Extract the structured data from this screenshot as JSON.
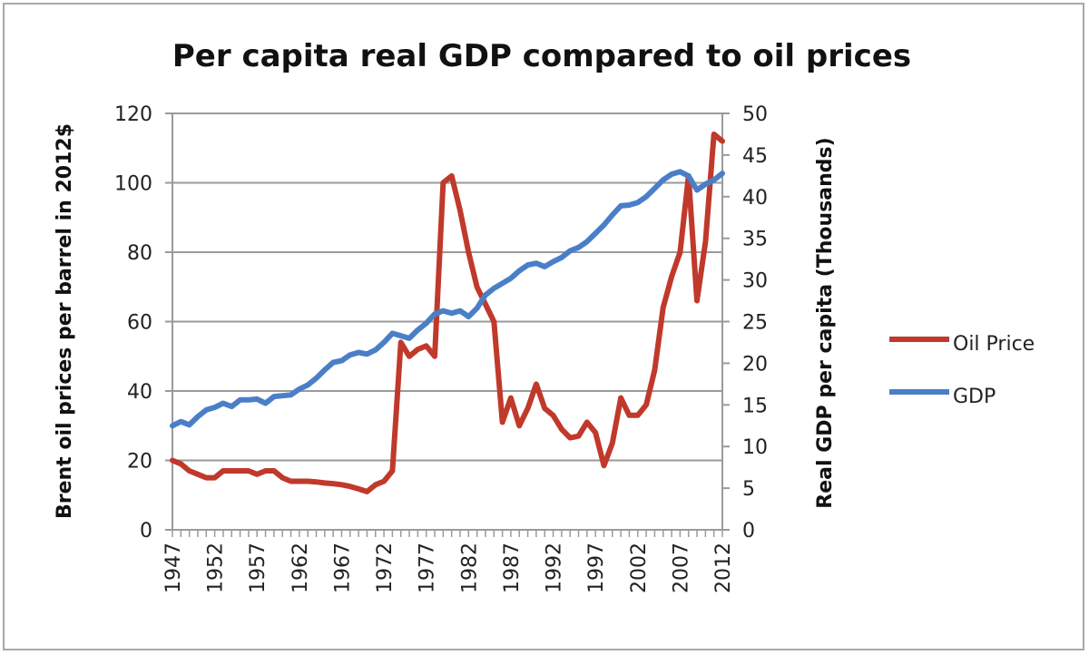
{
  "chart_data": {
    "type": "line",
    "title": "Per capita real GDP compared to oil prices",
    "xlabel": "",
    "ylabel": "Brent oil prices per barrel in 2012$",
    "ylabel_right": "Real GDP per capita (Thousands)",
    "ylim": [
      0,
      120
    ],
    "ylim_right": [
      0,
      50
    ],
    "yticks": [
      "0",
      "20",
      "40",
      "60",
      "80",
      "100",
      "120"
    ],
    "yticks_right": [
      "0",
      "5",
      "10",
      "15",
      "20",
      "25",
      "30",
      "35",
      "40",
      "45",
      "50"
    ],
    "xticks": [
      "1947",
      "1952",
      "1957",
      "1962",
      "1967",
      "1972",
      "1977",
      "1982",
      "1987",
      "1992",
      "1997",
      "2002",
      "2007",
      "2012"
    ],
    "grid": true,
    "legend_position": "right",
    "x": [
      1947,
      1948,
      1949,
      1950,
      1951,
      1952,
      1953,
      1954,
      1955,
      1956,
      1957,
      1958,
      1959,
      1960,
      1961,
      1962,
      1963,
      1964,
      1965,
      1966,
      1967,
      1968,
      1969,
      1970,
      1971,
      1972,
      1973,
      1974,
      1975,
      1976,
      1977,
      1978,
      1979,
      1980,
      1981,
      1982,
      1983,
      1984,
      1985,
      1986,
      1987,
      1988,
      1989,
      1990,
      1991,
      1992,
      1993,
      1994,
      1995,
      1996,
      1997,
      1998,
      1999,
      2000,
      2001,
      2002,
      2003,
      2004,
      2005,
      2006,
      2007,
      2008,
      2009,
      2010,
      2011,
      2012
    ],
    "series": [
      {
        "name": "Oil Price",
        "axis": "left",
        "color": "#c0392b",
        "values": [
          20,
          19,
          17,
          16,
          15,
          15,
          17,
          17,
          17,
          17,
          16,
          17,
          17,
          15,
          14,
          14,
          14,
          13.8,
          13.5,
          13.3,
          13,
          12.5,
          11.8,
          11,
          13,
          14,
          17,
          54,
          50,
          52,
          53,
          50,
          100,
          102,
          92,
          80,
          70,
          65,
          60,
          31,
          38,
          30,
          35,
          42,
          35,
          33,
          29,
          26.5,
          27,
          31,
          28,
          18.5,
          25,
          38,
          33,
          33,
          36,
          46,
          64,
          73,
          80,
          102,
          66,
          83,
          114,
          112
        ]
      },
      {
        "name": "GDP",
        "axis": "right",
        "color": "#4a7fc8",
        "values": [
          12.5,
          13,
          12.6,
          13.6,
          14.4,
          14.7,
          15.2,
          14.8,
          15.6,
          15.6,
          15.7,
          15.2,
          16.0,
          16.1,
          16.2,
          16.9,
          17.4,
          18.2,
          19.2,
          20.1,
          20.3,
          21.0,
          21.3,
          21.1,
          21.6,
          22.5,
          23.6,
          23.3,
          23.0,
          24.0,
          24.8,
          25.9,
          26.3,
          26.0,
          26.3,
          25.6,
          26.6,
          28.2,
          29.0,
          29.6,
          30.2,
          31.1,
          31.8,
          32.0,
          31.6,
          32.2,
          32.7,
          33.5,
          33.9,
          34.6,
          35.6,
          36.6,
          37.8,
          38.9,
          39.0,
          39.3,
          40.0,
          41.0,
          42.0,
          42.7,
          43.0,
          42.5,
          40.8,
          41.5,
          42.0,
          42.8
        ]
      }
    ]
  }
}
